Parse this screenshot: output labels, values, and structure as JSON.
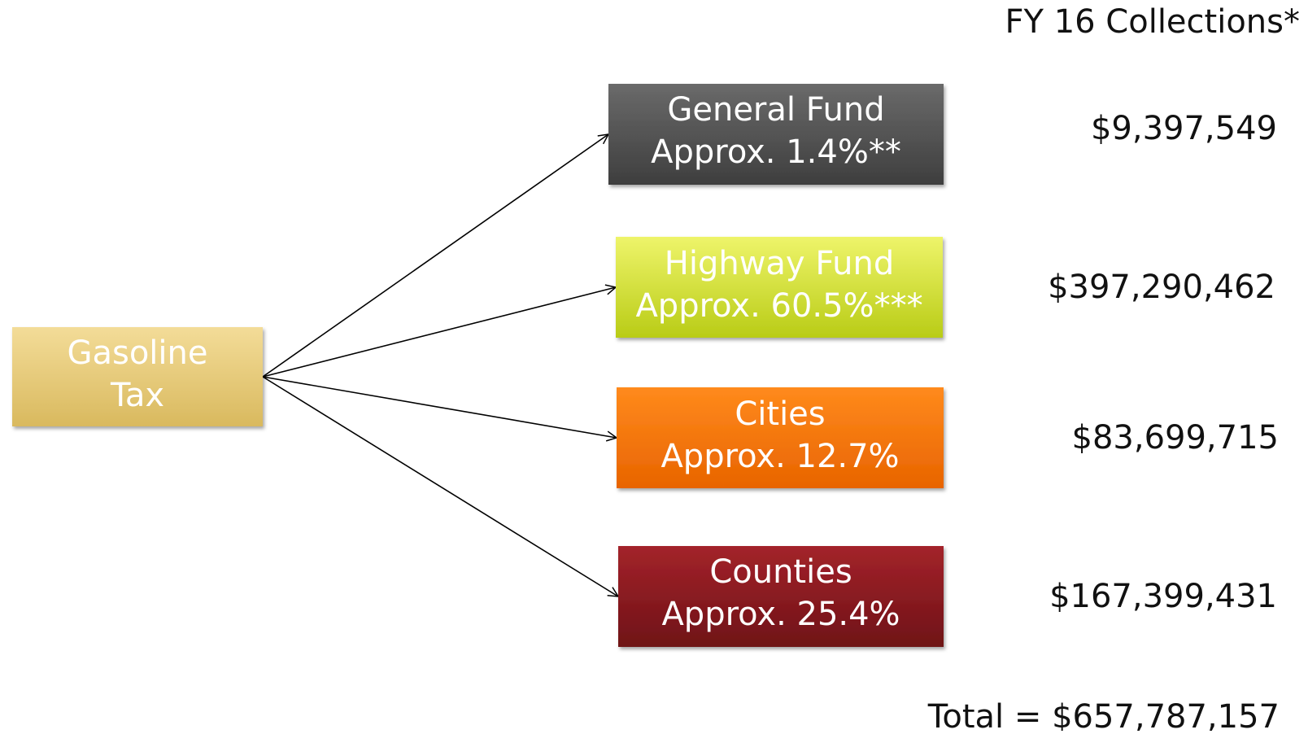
{
  "header": {
    "title": "FY 16 Collections*"
  },
  "source": {
    "lines": [
      "Gasoline",
      "Tax"
    ]
  },
  "destinations": [
    {
      "name": "General Fund",
      "share": "Approx. 1.4%**",
      "amount": "$9,397,549"
    },
    {
      "name": "Highway Fund",
      "share": "Approx. 60.5%***",
      "amount": "$397,290,462"
    },
    {
      "name": "Cities",
      "share": "Approx. 12.7%",
      "amount": "$83,699,715"
    },
    {
      "name": "Counties",
      "share": "Approx. 25.4%",
      "amount": "$167,399,431"
    }
  ],
  "total": "Total = $657,787,157"
}
